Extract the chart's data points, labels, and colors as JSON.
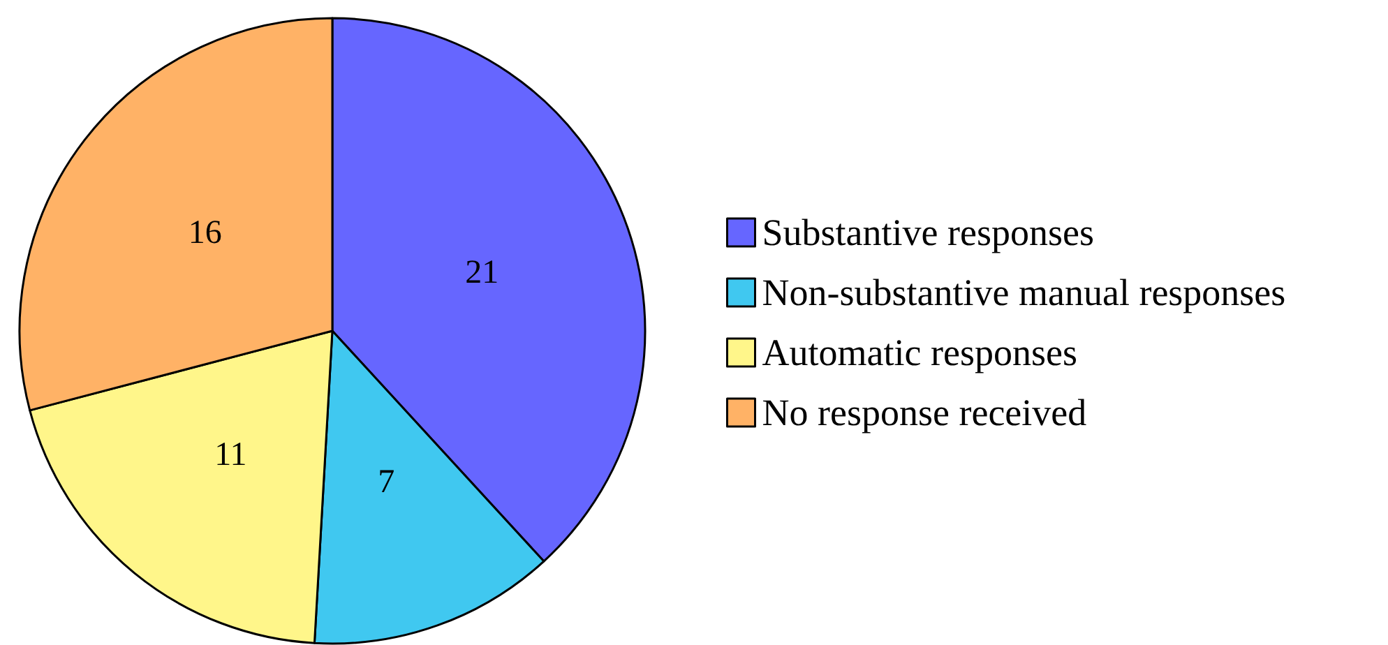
{
  "chart_data": {
    "type": "pie",
    "categories": [
      "Substantive responses",
      "Non-substantive manual responses",
      "Automatic responses",
      "No response received"
    ],
    "values": [
      21,
      7,
      11,
      16
    ],
    "colors": [
      "#6666ff",
      "#40c8f0",
      "#fff68a",
      "#ffb266"
    ],
    "data_labels": true,
    "legend": "right"
  }
}
